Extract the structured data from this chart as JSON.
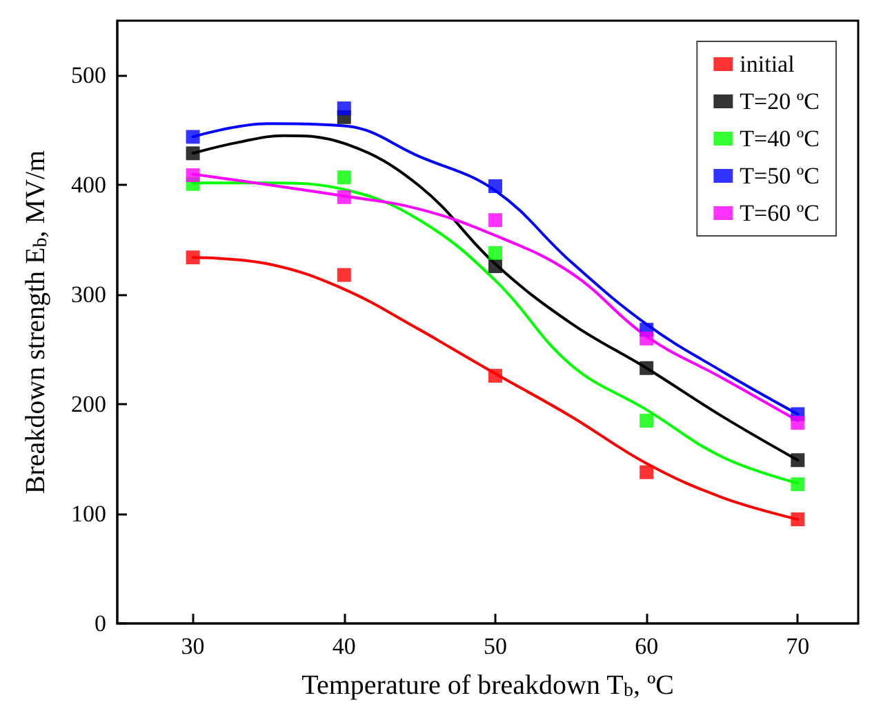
{
  "chart_data": {
    "type": "scatter",
    "xlabel": "Temperature of breakdown T$_{b}$, ºC",
    "ylabel": "Breakdown strength E$_{b}$, MV/m",
    "xlim": [
      25,
      74
    ],
    "xticks": [
      30,
      40,
      50,
      60,
      70
    ],
    "ylim": [
      0,
      550
    ],
    "yticks": [
      0,
      100,
      200,
      300,
      400,
      500
    ],
    "grid": false,
    "legend": "top right",
    "marker": "square",
    "series": [
      {
        "name": "initial",
        "color": "#ff0000",
        "x": [
          30,
          40,
          50,
          60,
          70
        ],
        "values": [
          334,
          318,
          226,
          138,
          95
        ]
      },
      {
        "name": "T=20 ºC",
        "color": "#000000",
        "x": [
          30,
          40,
          50,
          60,
          70
        ],
        "values": [
          429,
          462,
          326,
          233,
          149
        ]
      },
      {
        "name": "T=40 ºC",
        "color": "#00ff00",
        "x": [
          30,
          40,
          50,
          60,
          70
        ],
        "values": [
          401,
          407,
          338,
          185,
          127
        ]
      },
      {
        "name": "T=50 ºC",
        "color": "#0000ff",
        "x": [
          30,
          40,
          50,
          60,
          70
        ],
        "values": [
          444,
          470,
          399,
          268,
          191
        ]
      },
      {
        "name": "T=60 ºC",
        "color": "#ff00ff",
        "x": [
          30,
          40,
          50,
          60,
          70
        ],
        "values": [
          409,
          389,
          368,
          260,
          183
        ]
      },
      {
        "type": "line",
        "marker": "none",
        "color": "#ff0000",
        "x": [
          30,
          35,
          40,
          45,
          47,
          50,
          55,
          60,
          65,
          70
        ],
        "values": [
          334,
          328,
          305,
          268,
          252,
          228,
          189,
          146,
          115,
          95
        ]
      },
      {
        "type": "line",
        "marker": "none",
        "color": "#000000",
        "x": [
          30,
          33,
          36,
          40,
          45,
          50,
          55,
          60,
          65,
          70
        ],
        "values": [
          429,
          439,
          445,
          438,
          399,
          328,
          274,
          233,
          189,
          149
        ]
      },
      {
        "type": "line",
        "marker": "none",
        "color": "#00ff00",
        "x": [
          30,
          35,
          40,
          45,
          50,
          55,
          60,
          65,
          70
        ],
        "values": [
          402,
          402,
          396,
          368,
          313,
          236,
          195,
          152,
          128
        ]
      },
      {
        "type": "line",
        "marker": "none",
        "color": "#0000ff",
        "x": [
          30,
          35,
          40,
          45,
          50,
          55,
          60,
          65,
          70
        ],
        "values": [
          444,
          456,
          454,
          426,
          395,
          330,
          273,
          230,
          191
        ]
      },
      {
        "type": "line",
        "marker": "none",
        "color": "#ff00ff",
        "x": [
          30,
          40,
          45,
          50,
          55,
          60,
          65,
          70
        ],
        "values": [
          410,
          390,
          378,
          354,
          320,
          262,
          224,
          185
        ]
      }
    ]
  }
}
